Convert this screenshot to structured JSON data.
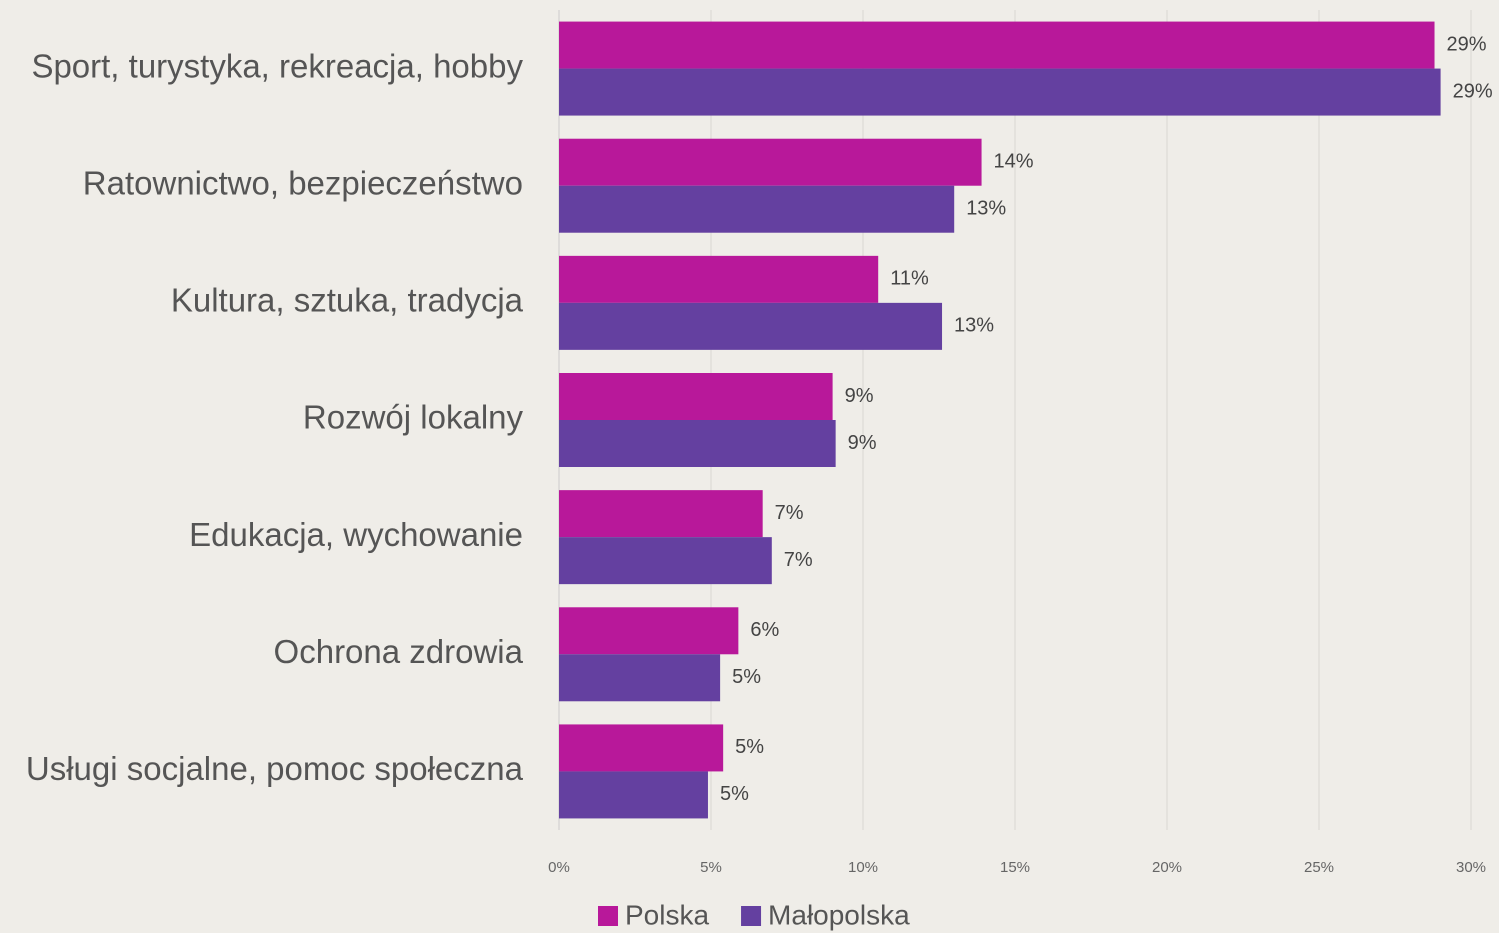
{
  "chart_data": {
    "type": "bar",
    "orientation": "horizontal",
    "categories": [
      "Sport, turystyka, rekreacja, hobby",
      "Ratownictwo, bezpieczeństwo",
      "Kultura, sztuka, tradycja",
      "Rozwój lokalny",
      "Edukacja, wychowanie",
      "Ochrona zdrowia",
      "Usługi socjalne, pomoc społeczna"
    ],
    "series": [
      {
        "name": "Polska",
        "color": "#b8189a",
        "values": [
          28.8,
          13.9,
          10.5,
          9.0,
          6.7,
          5.9,
          5.4
        ],
        "value_labels": [
          "29%",
          "14%",
          "11%",
          "9%",
          "7%",
          "6%",
          "5%"
        ]
      },
      {
        "name": "Małopolska",
        "color": "#6440a0",
        "values": [
          29.0,
          13.0,
          12.6,
          9.1,
          7.0,
          5.3,
          4.9
        ],
        "value_labels": [
          "29%",
          "13%",
          "13%",
          "9%",
          "7%",
          "5%",
          "5%"
        ]
      }
    ],
    "xlim": [
      0,
      30
    ],
    "xticks": [
      {
        "value": 0,
        "label": "0%"
      },
      {
        "value": 5,
        "label": "5%"
      },
      {
        "value": 10,
        "label": "10%"
      },
      {
        "value": 15,
        "label": "15%"
      },
      {
        "value": 20,
        "label": "20%"
      },
      {
        "value": 25,
        "label": "25%"
      },
      {
        "value": 30,
        "label": "30%"
      }
    ],
    "grid": true,
    "legend": "bottom"
  }
}
